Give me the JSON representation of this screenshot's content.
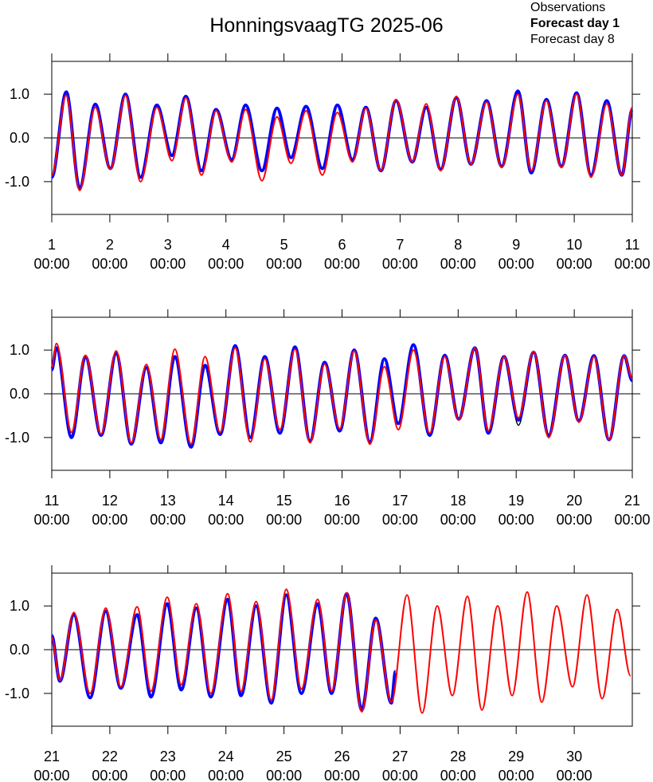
{
  "chart_data": [
    {
      "type": "line",
      "title": "HonningsvaagTG 2025-06",
      "legend_loc": "top-right",
      "xlim": [
        1,
        11
      ],
      "ylim": [
        -1.75,
        1.75
      ],
      "zero_line": true,
      "xticks": [
        {
          "value": 1,
          "label": [
            "1",
            "00:00"
          ]
        },
        {
          "value": 2,
          "label": [
            "2",
            "00:00"
          ]
        },
        {
          "value": 3,
          "label": [
            "3",
            "00:00"
          ]
        },
        {
          "value": 4,
          "label": [
            "4",
            "00:00"
          ]
        },
        {
          "value": 5,
          "label": [
            "5",
            "00:00"
          ]
        },
        {
          "value": 6,
          "label": [
            "6",
            "00:00"
          ]
        },
        {
          "value": 7,
          "label": [
            "7",
            "00:00"
          ]
        },
        {
          "value": 8,
          "label": [
            "8",
            "00:00"
          ]
        },
        {
          "value": 9,
          "label": [
            "9",
            "00:00"
          ]
        },
        {
          "value": 10,
          "label": [
            "10",
            "00:00"
          ]
        },
        {
          "value": 11,
          "label": [
            "11",
            "00:00"
          ]
        }
      ],
      "yticks": [
        {
          "value": -1,
          "label": "-1.0"
        },
        {
          "value": 0,
          "label": "0.0"
        },
        {
          "value": 1,
          "label": "1.0"
        }
      ],
      "series": [
        {
          "name": "Observations",
          "color": "#000000",
          "linewidth": 1.5,
          "x": [
            1.0,
            1.25,
            1.48,
            1.75,
            2.01,
            2.27,
            2.53,
            2.81,
            3.07,
            3.31,
            3.58,
            3.83,
            4.1,
            4.34,
            4.62,
            4.88,
            5.12,
            5.38,
            5.66,
            5.92,
            6.18,
            6.41,
            6.67,
            6.93,
            7.21,
            7.45,
            7.7,
            7.97,
            8.22,
            8.49,
            8.75,
            9.03,
            9.26,
            9.52,
            9.78,
            10.04,
            10.29,
            10.56,
            10.82,
            11.0
          ],
          "values": [
            -0.9,
            1.03,
            -1.13,
            0.76,
            -0.69,
            0.98,
            -0.88,
            0.74,
            -0.4,
            0.94,
            -0.74,
            0.64,
            -0.5,
            0.74,
            -0.74,
            0.67,
            -0.45,
            0.71,
            -0.69,
            0.74,
            -0.5,
            0.69,
            -0.74,
            0.84,
            -0.55,
            0.69,
            -0.71,
            0.92,
            -0.6,
            0.84,
            -0.64,
            1.05,
            -0.79,
            0.87,
            -0.64,
            1.02,
            -0.84,
            0.84,
            -0.84,
            0.65
          ]
        },
        {
          "name": "Forecast day 1",
          "color": "#0000ff",
          "linewidth": 4,
          "font_weight": "bold",
          "x": [
            1.0,
            1.25,
            1.48,
            1.75,
            2.01,
            2.27,
            2.53,
            2.81,
            3.07,
            3.31,
            3.58,
            3.83,
            4.1,
            4.34,
            4.62,
            4.88,
            5.12,
            5.38,
            5.66,
            5.92,
            6.18,
            6.41,
            6.67,
            6.93,
            7.21,
            7.45,
            7.7,
            7.97,
            8.22,
            8.49,
            8.75,
            9.03,
            9.26,
            9.52,
            9.78,
            10.04,
            10.29,
            10.56,
            10.82,
            11.0
          ],
          "values": [
            -0.9,
            1.05,
            -1.15,
            0.77,
            -0.7,
            1.0,
            -0.9,
            0.75,
            -0.4,
            0.95,
            -0.75,
            0.65,
            -0.5,
            0.75,
            -0.75,
            0.68,
            -0.45,
            0.72,
            -0.7,
            0.75,
            -0.5,
            0.7,
            -0.75,
            0.85,
            -0.55,
            0.7,
            -0.72,
            0.92,
            -0.6,
            0.85,
            -0.65,
            1.07,
            -0.8,
            0.88,
            -0.65,
            1.03,
            -0.85,
            0.85,
            -0.85,
            0.65
          ]
        },
        {
          "name": "Forecast day 8",
          "color": "#ff0000",
          "linewidth": 2,
          "x": [
            1.0,
            1.25,
            1.48,
            1.75,
            2.01,
            2.27,
            2.53,
            2.81,
            3.07,
            3.31,
            3.58,
            3.83,
            4.1,
            4.34,
            4.62,
            4.88,
            5.12,
            5.38,
            5.66,
            5.92,
            6.18,
            6.41,
            6.67,
            6.93,
            7.21,
            7.45,
            7.7,
            7.97,
            8.22,
            8.49,
            8.75,
            9.03,
            9.26,
            9.52,
            9.78,
            10.04,
            10.29,
            10.56,
            10.82,
            11.0
          ],
          "values": [
            -0.85,
            0.98,
            -1.2,
            0.7,
            -0.72,
            0.97,
            -1.0,
            0.7,
            -0.52,
            0.92,
            -0.85,
            0.62,
            -0.55,
            0.65,
            -0.98,
            0.48,
            -0.58,
            0.62,
            -0.85,
            0.58,
            -0.55,
            0.68,
            -0.75,
            0.88,
            -0.55,
            0.78,
            -0.75,
            0.95,
            -0.6,
            0.82,
            -0.68,
            1.0,
            -0.75,
            0.85,
            -0.68,
            1.0,
            -0.9,
            0.78,
            -0.85,
            0.7
          ]
        }
      ]
    },
    {
      "type": "line",
      "xlim": [
        11,
        21
      ],
      "ylim": [
        -1.75,
        1.75
      ],
      "zero_line": true,
      "xticks": [
        {
          "value": 11,
          "label": [
            "11",
            "00:00"
          ]
        },
        {
          "value": 12,
          "label": [
            "12",
            "00:00"
          ]
        },
        {
          "value": 13,
          "label": [
            "13",
            "00:00"
          ]
        },
        {
          "value": 14,
          "label": [
            "14",
            "00:00"
          ]
        },
        {
          "value": 15,
          "label": [
            "15",
            "00:00"
          ]
        },
        {
          "value": 16,
          "label": [
            "16",
            "00:00"
          ]
        },
        {
          "value": 17,
          "label": [
            "17",
            "00:00"
          ]
        },
        {
          "value": 18,
          "label": [
            "18",
            "00:00"
          ]
        },
        {
          "value": 19,
          "label": [
            "19",
            "00:00"
          ]
        },
        {
          "value": 20,
          "label": [
            "20",
            "00:00"
          ]
        },
        {
          "value": 21,
          "label": [
            "21",
            "00:00"
          ]
        }
      ],
      "yticks": [
        {
          "value": -1,
          "label": "-1.0"
        },
        {
          "value": 0,
          "label": "0.0"
        },
        {
          "value": 1,
          "label": "1.0"
        }
      ],
      "series": [
        {
          "color": "#000000",
          "linewidth": 1.5,
          "x": [
            11.0,
            11.08,
            11.34,
            11.58,
            11.85,
            12.11,
            12.37,
            12.63,
            12.88,
            13.12,
            13.4,
            13.64,
            13.9,
            14.16,
            14.42,
            14.67,
            14.93,
            15.19,
            15.45,
            15.7,
            15.96,
            16.21,
            16.48,
            16.73,
            16.97,
            17.23,
            17.51,
            17.77,
            18.01,
            18.29,
            18.52,
            18.79,
            19.04,
            19.3,
            19.56,
            19.84,
            20.08,
            20.34,
            20.6,
            20.86,
            21.0
          ],
          "values": [
            0.55,
            1.03,
            -0.98,
            0.84,
            -0.93,
            0.91,
            -1.13,
            0.6,
            -1.1,
            0.84,
            -1.2,
            0.64,
            -0.92,
            1.08,
            -0.98,
            0.84,
            -0.89,
            1.05,
            -1.06,
            0.71,
            -0.84,
            0.98,
            -1.08,
            0.79,
            -0.67,
            1.1,
            -0.93,
            0.87,
            -0.58,
            1.03,
            -0.89,
            0.84,
            -0.72,
            0.94,
            -0.94,
            0.87,
            -0.62,
            0.86,
            -1.03,
            0.86,
            0.3
          ]
        },
        {
          "color": "#0000ff",
          "linewidth": 4,
          "x": [
            11.0,
            11.08,
            11.34,
            11.58,
            11.85,
            12.11,
            12.37,
            12.63,
            12.88,
            13.12,
            13.4,
            13.64,
            13.9,
            14.16,
            14.42,
            14.67,
            14.93,
            15.19,
            15.45,
            15.7,
            15.96,
            16.21,
            16.48,
            16.73,
            16.97,
            17.23,
            17.51,
            17.77,
            18.01,
            18.29,
            18.52,
            18.79,
            19.04,
            19.3,
            19.56,
            19.84,
            20.08,
            20.34,
            20.6,
            20.86,
            21.0
          ],
          "values": [
            0.55,
            1.05,
            -1.0,
            0.85,
            -0.95,
            0.92,
            -1.15,
            0.6,
            -1.12,
            0.85,
            -1.22,
            0.65,
            -0.93,
            1.1,
            -1.0,
            0.85,
            -0.9,
            1.07,
            -1.08,
            0.72,
            -0.85,
            1.0,
            -1.1,
            0.8,
            -0.68,
            1.12,
            -0.95,
            0.88,
            -0.58,
            1.05,
            -0.9,
            0.85,
            -0.6,
            0.95,
            -0.95,
            0.88,
            -0.62,
            0.87,
            -1.05,
            0.87,
            0.3
          ]
        },
        {
          "color": "#ff0000",
          "linewidth": 2,
          "x": [
            11.0,
            11.08,
            11.34,
            11.58,
            11.85,
            12.11,
            12.37,
            12.63,
            12.88,
            13.12,
            13.4,
            13.64,
            13.9,
            14.16,
            14.42,
            14.67,
            14.93,
            15.19,
            15.45,
            15.7,
            15.96,
            16.21,
            16.48,
            16.73,
            16.97,
            17.23,
            17.51,
            17.77,
            18.01,
            18.29,
            18.52,
            18.79,
            19.04,
            19.3,
            19.56,
            19.84,
            20.08,
            20.34,
            20.6,
            20.86,
            21.0
          ],
          "values": [
            0.6,
            1.15,
            -0.88,
            0.88,
            -0.92,
            0.98,
            -1.12,
            0.67,
            -1.05,
            1.02,
            -1.15,
            0.85,
            -0.88,
            1.05,
            -1.1,
            0.8,
            -0.82,
            1.02,
            -1.12,
            0.68,
            -0.8,
            0.98,
            -1.15,
            0.62,
            -0.82,
            1.0,
            -0.9,
            0.85,
            -0.6,
            1.05,
            -0.85,
            0.85,
            -0.55,
            0.97,
            -1.0,
            0.88,
            -0.65,
            0.85,
            -1.05,
            0.87,
            0.35
          ]
        }
      ]
    },
    {
      "type": "line",
      "xlim": [
        21,
        31
      ],
      "ylim": [
        -1.75,
        1.75
      ],
      "zero_line": true,
      "xticks": [
        {
          "value": 21,
          "label": [
            "21",
            "00:00"
          ]
        },
        {
          "value": 22,
          "label": [
            "22",
            "00:00"
          ]
        },
        {
          "value": 23,
          "label": [
            "23",
            "00:00"
          ]
        },
        {
          "value": 24,
          "label": [
            "24",
            "00:00"
          ]
        },
        {
          "value": 25,
          "label": [
            "25",
            "00:00"
          ]
        },
        {
          "value": 26,
          "label": [
            "26",
            "00:00"
          ]
        },
        {
          "value": 27,
          "label": [
            "27",
            "00:00"
          ]
        },
        {
          "value": 28,
          "label": [
            "28",
            "00:00"
          ]
        },
        {
          "value": 29,
          "label": [
            "29",
            "00:00"
          ]
        },
        {
          "value": 30,
          "label": [
            "30",
            "00:00"
          ]
        }
      ],
      "yticks": [
        {
          "value": -1,
          "label": "-1.0"
        },
        {
          "value": 0,
          "label": "0.0"
        },
        {
          "value": 1,
          "label": "1.0"
        }
      ],
      "series": [
        {
          "color": "#000000",
          "linewidth": 1.5,
          "x": [
            21.0,
            21.14,
            21.38,
            21.66,
            21.93,
            22.19,
            22.47,
            22.71,
            22.99,
            23.23,
            23.49,
            23.74,
            24.03,
            24.26,
            24.52,
            24.78,
            25.04,
            25.3,
            25.58,
            25.82,
            26.08,
            26.34,
            26.58,
            26.85,
            26.92
          ],
          "values": [
            0.32,
            -0.71,
            0.79,
            -1.08,
            0.87,
            -0.87,
            0.79,
            -1.06,
            1.03,
            -0.91,
            0.94,
            -1.06,
            1.13,
            -1.04,
            0.99,
            -1.2,
            1.23,
            -0.99,
            1.04,
            -0.99,
            1.26,
            -1.36,
            0.71,
            -1.2,
            -0.5
          ]
        },
        {
          "color": "#0000ff",
          "linewidth": 4,
          "x": [
            21.0,
            21.14,
            21.38,
            21.66,
            21.93,
            22.19,
            22.47,
            22.71,
            22.99,
            23.23,
            23.49,
            23.74,
            24.03,
            24.26,
            24.52,
            24.78,
            25.04,
            25.3,
            25.58,
            25.82,
            26.08,
            26.34,
            26.58,
            26.85,
            26.92
          ],
          "values": [
            0.32,
            -0.72,
            0.8,
            -1.1,
            0.88,
            -0.88,
            0.8,
            -1.08,
            1.05,
            -0.92,
            0.95,
            -1.08,
            1.15,
            -1.05,
            1.0,
            -1.22,
            1.25,
            -1.0,
            1.05,
            -1.0,
            1.28,
            -1.38,
            0.72,
            -1.22,
            -0.5
          ]
        },
        {
          "color": "#ff0000",
          "linewidth": 2,
          "x": [
            21.0,
            21.14,
            21.38,
            21.66,
            21.93,
            22.19,
            22.47,
            22.71,
            22.99,
            23.23,
            23.49,
            23.74,
            24.03,
            24.26,
            24.52,
            24.78,
            25.04,
            25.3,
            25.58,
            25.82,
            26.08,
            26.34,
            26.58,
            26.85,
            27.12,
            27.38,
            27.64,
            27.9,
            28.16,
            28.41,
            28.68,
            28.93,
            29.19,
            29.44,
            29.7,
            29.97,
            30.22,
            30.48,
            30.74,
            30.97
          ],
          "values": [
            0.28,
            -0.7,
            0.85,
            -1.0,
            0.95,
            -0.85,
            0.98,
            -0.95,
            1.2,
            -0.8,
            1.05,
            -1.0,
            1.28,
            -0.95,
            1.1,
            -1.15,
            1.38,
            -0.9,
            1.15,
            -0.95,
            1.3,
            -1.42,
            0.68,
            -1.2,
            1.25,
            -1.45,
            1.0,
            -1.05,
            1.22,
            -1.38,
            1.0,
            -1.05,
            1.32,
            -1.2,
            1.0,
            -0.85,
            1.25,
            -1.12,
            0.92,
            -0.6
          ]
        }
      ]
    }
  ]
}
